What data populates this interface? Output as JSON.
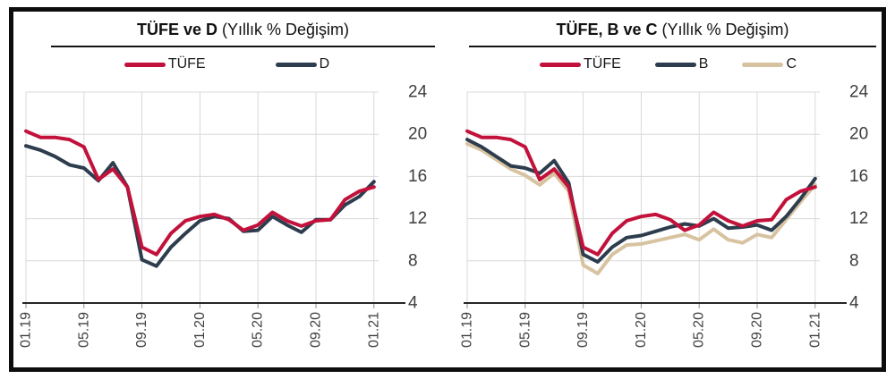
{
  "colors": {
    "tufe_red": "#c2113b",
    "dark_navy": "#2e3d4e",
    "tan": "#d7c3a0",
    "grid": "#d9d9d9",
    "axis": "#262626",
    "tick": "#8c8c8c",
    "tick_text": "#404040",
    "frame": "#0d0d0d"
  },
  "chart_data": [
    {
      "type": "line",
      "title_bold": "TÜFE ve D",
      "title_rest": " (Yıllık % Değişim)",
      "ylabel": "",
      "xlabel": "",
      "ylim": [
        4,
        24
      ],
      "y_ticks": [
        4,
        8,
        12,
        16,
        20,
        24
      ],
      "y_axis_side": "right",
      "grid": true,
      "legend_position": "top",
      "x_tick_labels": [
        "01.19",
        "05.19",
        "09.19",
        "01.20",
        "05.20",
        "09.20",
        "01.21"
      ],
      "x_tick_positions": [
        0,
        4,
        8,
        12,
        16,
        20,
        24
      ],
      "x_tick_rotation": 90,
      "x_months": [
        "01.19",
        "02.19",
        "03.19",
        "04.19",
        "05.19",
        "06.19",
        "07.19",
        "08.19",
        "09.19",
        "10.19",
        "11.19",
        "12.19",
        "01.20",
        "02.20",
        "03.20",
        "04.20",
        "05.20",
        "06.20",
        "07.20",
        "08.20",
        "09.20",
        "10.20",
        "11.20",
        "12.20",
        "01.21"
      ],
      "series": [
        {
          "name": "TÜFE",
          "color": "#c2113b",
          "values": [
            20.3,
            19.7,
            19.7,
            19.5,
            18.8,
            15.7,
            16.7,
            15.0,
            9.3,
            8.6,
            10.6,
            11.8,
            12.2,
            12.4,
            11.9,
            10.9,
            11.4,
            12.6,
            11.8,
            11.3,
            11.8,
            11.9,
            13.8,
            14.6,
            15.0
          ]
        },
        {
          "name": "D",
          "color": "#2e3d4e",
          "values": [
            18.9,
            18.5,
            17.9,
            17.1,
            16.8,
            15.6,
            17.3,
            15.0,
            8.1,
            7.5,
            9.3,
            10.6,
            11.8,
            12.2,
            12.0,
            10.8,
            10.9,
            12.2,
            11.4,
            10.7,
            11.9,
            11.9,
            13.3,
            14.1,
            15.5
          ]
        }
      ]
    },
    {
      "type": "line",
      "title_bold": "TÜFE, B ve C",
      "title_rest": " (Yıllık % Değişim)",
      "ylabel": "",
      "xlabel": "",
      "ylim": [
        4,
        24
      ],
      "y_ticks": [
        4,
        8,
        12,
        16,
        20,
        24
      ],
      "y_axis_side": "right",
      "grid": true,
      "legend_position": "top",
      "x_tick_labels": [
        "01.19",
        "05.19",
        "09.19",
        "01.20",
        "05.20",
        "09.20",
        "01.21"
      ],
      "x_tick_positions": [
        0,
        4,
        8,
        12,
        16,
        20,
        24
      ],
      "x_tick_rotation": 90,
      "x_months": [
        "01.19",
        "02.19",
        "03.19",
        "04.19",
        "05.19",
        "06.19",
        "07.19",
        "08.19",
        "09.19",
        "10.19",
        "11.19",
        "12.19",
        "01.20",
        "02.20",
        "03.20",
        "04.20",
        "05.20",
        "06.20",
        "07.20",
        "08.20",
        "09.20",
        "10.20",
        "11.20",
        "12.20",
        "01.21"
      ],
      "series": [
        {
          "name": "TÜFE",
          "color": "#c2113b",
          "values": [
            20.3,
            19.7,
            19.7,
            19.5,
            18.8,
            15.7,
            16.7,
            15.0,
            9.3,
            8.6,
            10.6,
            11.8,
            12.2,
            12.4,
            11.9,
            10.9,
            11.4,
            12.6,
            11.8,
            11.3,
            11.8,
            11.9,
            13.8,
            14.6,
            15.0
          ]
        },
        {
          "name": "B",
          "color": "#2e3d4e",
          "values": [
            19.5,
            18.8,
            17.9,
            17.0,
            16.8,
            16.3,
            17.5,
            15.4,
            8.6,
            7.9,
            9.3,
            10.2,
            10.4,
            10.8,
            11.2,
            11.5,
            11.3,
            12.0,
            11.1,
            11.2,
            11.4,
            10.9,
            12.2,
            13.9,
            15.8
          ]
        },
        {
          "name": "C",
          "color": "#d7c3a0",
          "values": [
            19.1,
            18.5,
            17.6,
            16.7,
            16.1,
            15.2,
            16.3,
            14.6,
            7.6,
            6.8,
            8.6,
            9.5,
            9.6,
            9.9,
            10.2,
            10.5,
            10.0,
            11.0,
            10.0,
            9.7,
            10.5,
            10.2,
            11.9,
            13.6,
            15.2
          ]
        }
      ]
    }
  ]
}
